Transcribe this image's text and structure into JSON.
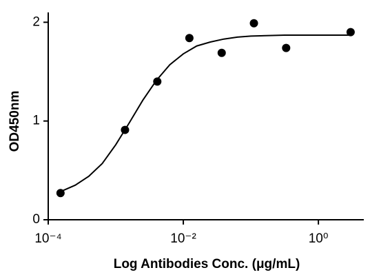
{
  "chart_data": {
    "type": "scatter",
    "x_label": "Log Antibodies Conc. (μg/mL)",
    "y_label": "OD450nm",
    "xscale": "log",
    "xlim": [
      0.0001,
      4.7
    ],
    "xticks": [
      {
        "value": 0.0001,
        "label": "10⁻⁴"
      },
      {
        "value": 0.01,
        "label": "10⁻²"
      },
      {
        "value": 1,
        "label": "10⁰"
      }
    ],
    "ylim": [
      0,
      2.1
    ],
    "yticks": [
      0,
      1,
      2
    ],
    "color": "#000000",
    "points": {
      "x": [
        0.000152,
        0.00137,
        0.00412,
        0.0123,
        0.037,
        0.111,
        0.333,
        3
      ],
      "values": [
        0.27,
        0.91,
        1.4,
        1.84,
        1.69,
        1.99,
        1.74,
        1.9
      ]
    },
    "fit": {
      "x": [
        0.000158,
        0.000251,
        0.000398,
        0.000631,
        0.001,
        0.00158,
        0.00251,
        0.00398,
        0.00631,
        0.01,
        0.0158,
        0.0251,
        0.0398,
        0.0631,
        0.1,
        0.316,
        1,
        3.16
      ],
      "values": [
        0.29,
        0.35,
        0.44,
        0.57,
        0.76,
        0.98,
        1.21,
        1.41,
        1.57,
        1.68,
        1.76,
        1.8,
        1.83,
        1.85,
        1.86,
        1.87,
        1.87,
        1.87
      ]
    }
  }
}
